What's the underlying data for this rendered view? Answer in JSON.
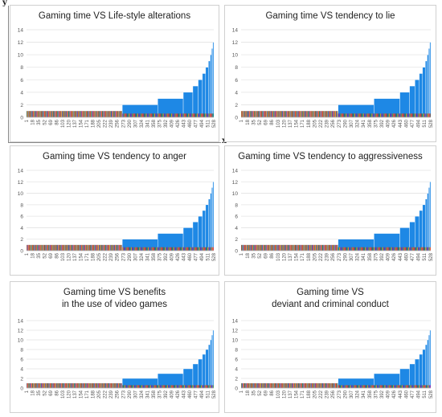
{
  "axis_letters": {
    "y": "y",
    "x": "x"
  },
  "chart_data": [
    {
      "type": "bar",
      "title": "Gaming time VS Life-style alterations",
      "title_lines": [
        "Gaming time VS Life-style alterations"
      ],
      "ylim": [
        0,
        14
      ],
      "yticks": [
        0,
        2,
        4,
        6,
        8,
        10,
        12,
        14
      ],
      "xticks": [
        1,
        18,
        35,
        52,
        69,
        86,
        103,
        120,
        137,
        154,
        171,
        188,
        205,
        222,
        239,
        256,
        273,
        290,
        307,
        324,
        341,
        358,
        375,
        392,
        409,
        426,
        443,
        460,
        477,
        494,
        511,
        528
      ],
      "n": 528,
      "blue_steps": [
        [
          271,
          2
        ],
        [
          371,
          3
        ],
        [
          443,
          4
        ],
        [
          470,
          5
        ],
        [
          485,
          6
        ],
        [
          497,
          7
        ],
        [
          506,
          8
        ],
        [
          514,
          9
        ],
        [
          519,
          10
        ],
        [
          523,
          11
        ],
        [
          526,
          12
        ]
      ],
      "low_value": 1
    },
    {
      "type": "bar",
      "title": "Gaming time VS tendency to lie",
      "title_lines": [
        "Gaming time VS tendency to lie"
      ],
      "ylim": [
        0,
        14
      ],
      "yticks": [
        0,
        2,
        4,
        6,
        8,
        10,
        12,
        14
      ],
      "xticks": [
        1,
        18,
        35,
        52,
        69,
        86,
        103,
        120,
        137,
        154,
        171,
        188,
        205,
        222,
        239,
        256,
        273,
        290,
        307,
        324,
        341,
        358,
        375,
        392,
        409,
        426,
        443,
        460,
        477,
        494,
        511,
        528
      ],
      "n": 528,
      "blue_steps": [
        [
          271,
          2
        ],
        [
          371,
          3
        ],
        [
          443,
          4
        ],
        [
          470,
          5
        ],
        [
          485,
          6
        ],
        [
          497,
          7
        ],
        [
          506,
          8
        ],
        [
          514,
          9
        ],
        [
          519,
          10
        ],
        [
          523,
          11
        ],
        [
          526,
          12
        ]
      ],
      "low_value": 1
    },
    {
      "type": "bar",
      "title": "Gaming time VS tendency to anger",
      "title_lines": [
        "Gaming time VS tendency to anger"
      ],
      "ylim": [
        0,
        14
      ],
      "yticks": [
        0,
        2,
        4,
        6,
        8,
        10,
        12,
        14
      ],
      "xticks": [
        1,
        18,
        35,
        52,
        69,
        86,
        103,
        120,
        137,
        154,
        171,
        188,
        205,
        222,
        239,
        256,
        273,
        290,
        307,
        324,
        341,
        358,
        375,
        392,
        409,
        426,
        443,
        460,
        477,
        494,
        511,
        528
      ],
      "n": 528,
      "blue_steps": [
        [
          271,
          2
        ],
        [
          371,
          3
        ],
        [
          443,
          4
        ],
        [
          470,
          5
        ],
        [
          485,
          6
        ],
        [
          497,
          7
        ],
        [
          506,
          8
        ],
        [
          514,
          9
        ],
        [
          519,
          10
        ],
        [
          523,
          11
        ],
        [
          526,
          12
        ]
      ],
      "low_value": 1
    },
    {
      "type": "bar",
      "title": "Gaming time VS tendency to aggressiveness",
      "title_lines": [
        "Gaming time VS tendency to aggressiveness"
      ],
      "ylim": [
        0,
        14
      ],
      "yticks": [
        0,
        2,
        4,
        6,
        8,
        10,
        12,
        14
      ],
      "xticks": [
        1,
        18,
        35,
        52,
        69,
        86,
        103,
        120,
        137,
        154,
        171,
        188,
        205,
        222,
        239,
        256,
        273,
        290,
        307,
        324,
        341,
        358,
        375,
        392,
        409,
        426,
        443,
        460,
        477,
        494,
        511,
        528
      ],
      "n": 528,
      "blue_steps": [
        [
          271,
          2
        ],
        [
          371,
          3
        ],
        [
          443,
          4
        ],
        [
          470,
          5
        ],
        [
          485,
          6
        ],
        [
          497,
          7
        ],
        [
          506,
          8
        ],
        [
          514,
          9
        ],
        [
          519,
          10
        ],
        [
          523,
          11
        ],
        [
          526,
          12
        ]
      ],
      "low_value": 1
    },
    {
      "type": "bar",
      "title": "Gaming time VS benefits in the use of video games",
      "title_lines": [
        "Gaming time VS benefits",
        "in the use of video games"
      ],
      "ylim": [
        0,
        14
      ],
      "yticks": [
        0,
        2,
        4,
        6,
        8,
        10,
        12,
        14
      ],
      "xticks": [
        1,
        18,
        35,
        52,
        69,
        86,
        103,
        120,
        137,
        154,
        171,
        188,
        205,
        222,
        239,
        256,
        273,
        290,
        307,
        324,
        341,
        358,
        375,
        392,
        409,
        426,
        443,
        460,
        477,
        494,
        511,
        528
      ],
      "n": 528,
      "blue_steps": [
        [
          271,
          2
        ],
        [
          371,
          3
        ],
        [
          443,
          4
        ],
        [
          470,
          5
        ],
        [
          485,
          6
        ],
        [
          497,
          7
        ],
        [
          506,
          8
        ],
        [
          514,
          9
        ],
        [
          519,
          10
        ],
        [
          523,
          11
        ],
        [
          526,
          12
        ]
      ],
      "low_value": 1
    },
    {
      "type": "bar",
      "title": "Gaming time VS deviant and criminal conduct",
      "title_lines": [
        "Gaming time VS",
        "deviant and criminal conduct"
      ],
      "ylim": [
        0,
        14
      ],
      "yticks": [
        0,
        2,
        4,
        6,
        8,
        10,
        12,
        14
      ],
      "xticks": [
        1,
        18,
        35,
        52,
        69,
        86,
        103,
        120,
        137,
        154,
        171,
        188,
        205,
        222,
        239,
        256,
        273,
        290,
        307,
        324,
        341,
        358,
        375,
        392,
        409,
        426,
        443,
        460,
        477,
        494,
        511,
        528
      ],
      "n": 528,
      "blue_steps": [
        [
          271,
          2
        ],
        [
          371,
          3
        ],
        [
          443,
          4
        ],
        [
          470,
          5
        ],
        [
          485,
          6
        ],
        [
          497,
          7
        ],
        [
          506,
          8
        ],
        [
          514,
          9
        ],
        [
          519,
          10
        ],
        [
          523,
          11
        ],
        [
          526,
          12
        ]
      ],
      "low_value": 1
    }
  ],
  "colors": {
    "blue": "#1e88e5",
    "palette": [
      "#e53935",
      "#f4511e",
      "#43a047",
      "#8e24aa",
      "#3949ab",
      "#fb8c00",
      "#00897b",
      "#6d4c41"
    ]
  }
}
